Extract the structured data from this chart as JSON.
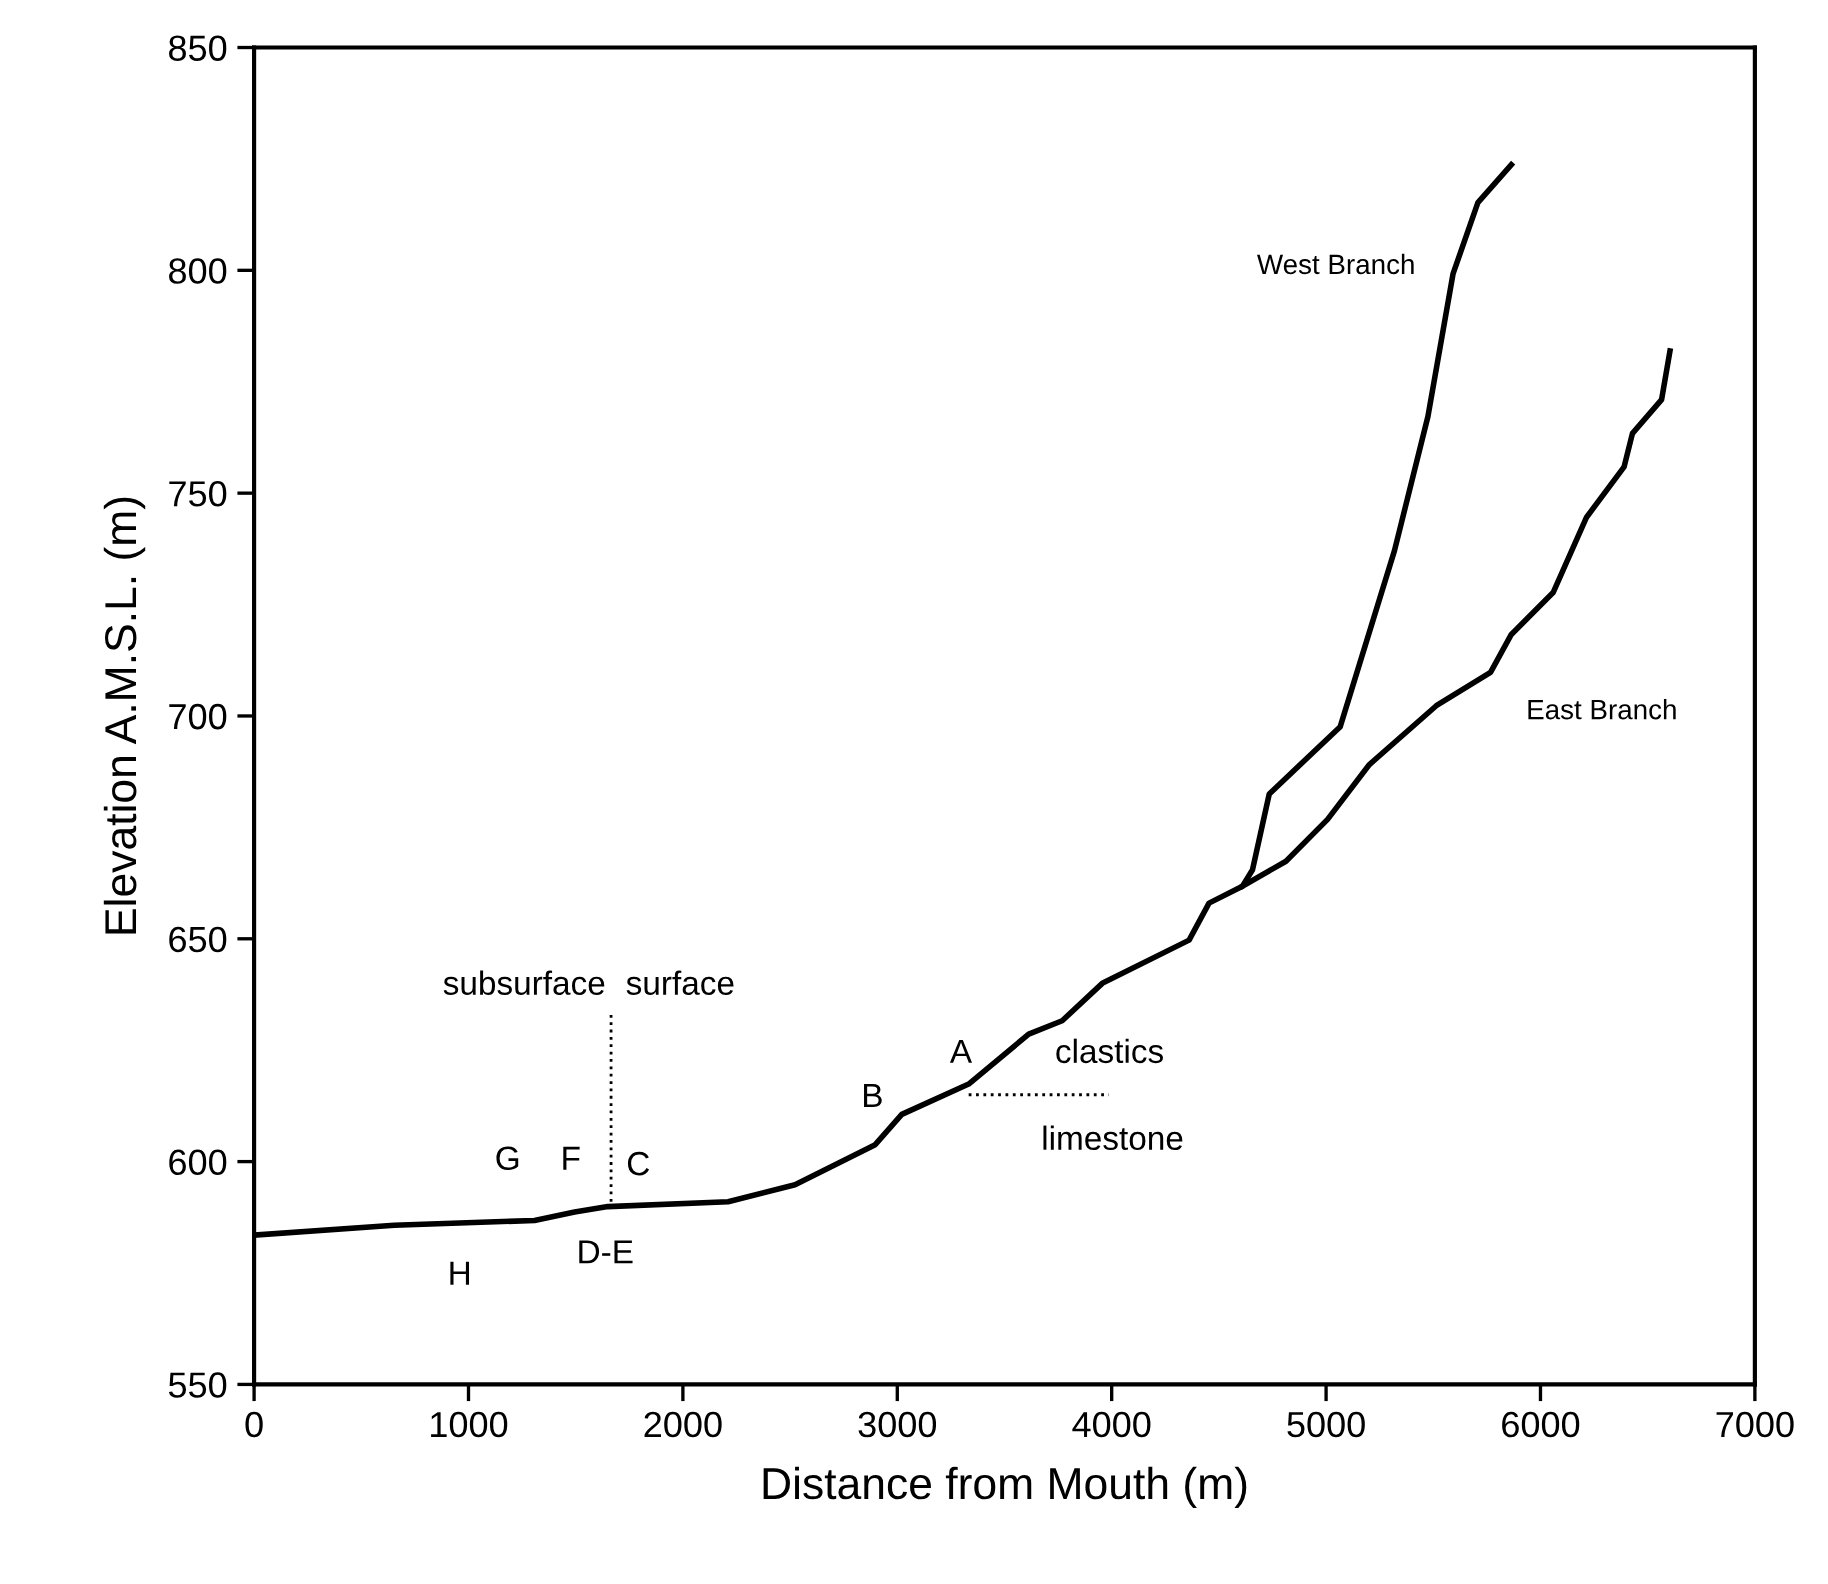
{
  "chart_data": {
    "type": "line",
    "xlabel": "Distance from Mouth (m)",
    "ylabel": "Elevation A.M.S.L. (m)",
    "xlim": [
      0,
      7000
    ],
    "ylim": [
      550,
      850
    ],
    "xticks": [
      0,
      1000,
      2000,
      3000,
      4000,
      5000,
      6000,
      7000
    ],
    "yticks": [
      550,
      600,
      650,
      700,
      750,
      800,
      850
    ],
    "grid": false,
    "series": [
      {
        "color": "#000000",
        "line_style": "solid",
        "x": [
          0,
          654,
          1308,
          1495,
          1650,
          2211,
          2523,
          2897,
          3021,
          3333,
          3613,
          3769,
          3956,
          4361,
          4454,
          4610,
          4657,
          4735,
          5066,
          5319,
          5475,
          5592,
          5708,
          5864
        ],
        "values": [
          583.5,
          585.7,
          586.8,
          588.7,
          589.9,
          591.0,
          594.8,
          603.8,
          610.6,
          617.4,
          628.6,
          631.6,
          640.0,
          649.7,
          658.0,
          661.8,
          665.5,
          682.5,
          697.6,
          737.1,
          767.2,
          799.2,
          815.2,
          823.7
        ]
      },
      {
        "color": "#000000",
        "line_style": "solid",
        "x": [
          4610,
          4813,
          5007,
          5202,
          5514,
          5767,
          5864,
          6059,
          6215,
          6390,
          6429,
          6565,
          6604
        ],
        "values": [
          661.8,
          667.4,
          676.8,
          689.1,
          702.3,
          709.8,
          718.3,
          727.7,
          744.6,
          755.9,
          763.4,
          771.0,
          781.9
        ]
      },
      {
        "color": "#000000",
        "line_style": "dotted",
        "x": [
          1665,
          1665
        ],
        "values": [
          591,
          633
        ]
      },
      {
        "color": "#000000",
        "line_style": "dotted",
        "x": [
          3333,
          3987
        ],
        "values": [
          615,
          615
        ]
      }
    ],
    "annotations": [
      "West Branch",
      "East Branch",
      "subsurface",
      "surface",
      "G",
      "F",
      "C",
      "H",
      "D-E",
      "B",
      "A",
      "clastics",
      "limestone"
    ]
  }
}
